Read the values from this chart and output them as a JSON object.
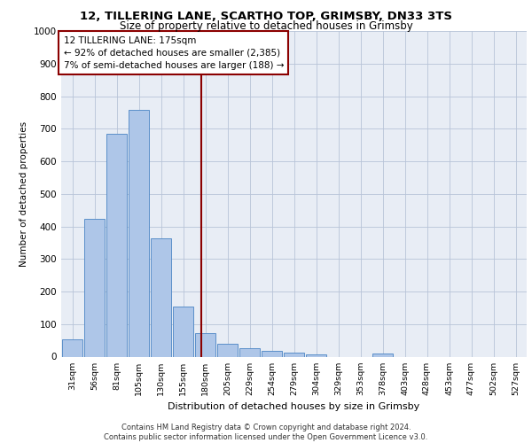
{
  "title_line1": "12, TILLERING LANE, SCARTHO TOP, GRIMSBY, DN33 3TS",
  "title_line2": "Size of property relative to detached houses in Grimsby",
  "xlabel": "Distribution of detached houses by size in Grimsby",
  "ylabel": "Number of detached properties",
  "categories": [
    "31sqm",
    "56sqm",
    "81sqm",
    "105sqm",
    "130sqm",
    "155sqm",
    "180sqm",
    "205sqm",
    "229sqm",
    "254sqm",
    "279sqm",
    "304sqm",
    "329sqm",
    "353sqm",
    "378sqm",
    "403sqm",
    "428sqm",
    "453sqm",
    "477sqm",
    "502sqm",
    "527sqm"
  ],
  "values": [
    52,
    423,
    685,
    757,
    362,
    155,
    73,
    40,
    27,
    18,
    12,
    8,
    0,
    0,
    10,
    0,
    0,
    0,
    0,
    0,
    0
  ],
  "bar_color": "#aec6e8",
  "bar_edge_color": "#5b8fc9",
  "highlight_line_color": "#8b0000",
  "annotation_text": "12 TILLERING LANE: 175sqm\n← 92% of detached houses are smaller (2,385)\n7% of semi-detached houses are larger (188) →",
  "annotation_box_color": "#ffffff",
  "annotation_box_edge_color": "#8b0000",
  "ylim": [
    0,
    1000
  ],
  "yticks": [
    0,
    100,
    200,
    300,
    400,
    500,
    600,
    700,
    800,
    900,
    1000
  ],
  "background_color": "#e8edf5",
  "footer_text": "Contains HM Land Registry data © Crown copyright and database right 2024.\nContains public sector information licensed under the Open Government Licence v3.0."
}
